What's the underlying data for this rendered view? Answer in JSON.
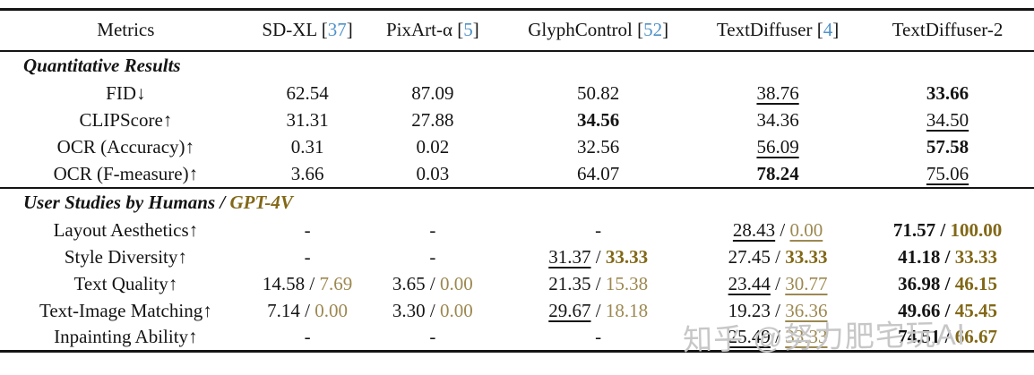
{
  "colors": {
    "cite_blue": "#4f91c9",
    "gold_plain": "#9c8850",
    "gold_bold": "#826817",
    "rule_black": "#141414",
    "watermark_gray": "#c7c7c7"
  },
  "table": {
    "columns": [
      {
        "label": "Metrics"
      },
      {
        "name": "SD-XL",
        "cite": "37"
      },
      {
        "name": "PixArt-α",
        "cite": "5"
      },
      {
        "name": "GlyphControl",
        "cite": "52"
      },
      {
        "name": "TextDiffuser",
        "cite": "4"
      },
      {
        "name": "TextDiffuser-2"
      }
    ],
    "sections": [
      {
        "title": "Quantitative Results",
        "title_suffix": "",
        "rows": [
          {
            "metric": "FID↓",
            "cells": [
              {
                "v": "62.54"
              },
              {
                "v": "87.09"
              },
              {
                "v": "50.82"
              },
              {
                "v": "38.76",
                "s": "u"
              },
              {
                "v": "33.66",
                "s": "b"
              }
            ]
          },
          {
            "metric": "CLIPScore↑",
            "cells": [
              {
                "v": "31.31"
              },
              {
                "v": "27.88"
              },
              {
                "v": "34.56",
                "s": "b"
              },
              {
                "v": "34.36"
              },
              {
                "v": "34.50",
                "s": "u"
              }
            ]
          },
          {
            "metric": "OCR (Accuracy)↑",
            "cells": [
              {
                "v": "0.31"
              },
              {
                "v": "0.02"
              },
              {
                "v": "32.56"
              },
              {
                "v": "56.09",
                "s": "u"
              },
              {
                "v": "57.58",
                "s": "b"
              }
            ]
          },
          {
            "metric": "OCR (F-measure)↑",
            "cells": [
              {
                "v": "3.66"
              },
              {
                "v": "0.03"
              },
              {
                "v": "64.07"
              },
              {
                "v": "78.24",
                "s": "b"
              },
              {
                "v": "75.06",
                "s": "u"
              }
            ]
          }
        ]
      },
      {
        "title": "User Studies by Humans / ",
        "title_suffix": "GPT-4V",
        "rows": [
          {
            "metric": "Layout Aesthetics↑",
            "cells": [
              {
                "v": "-"
              },
              {
                "v": "-"
              },
              {
                "v": "-"
              },
              {
                "v": "28.43",
                "s": "u",
                "v2": "0.00",
                "s2": "u"
              },
              {
                "v": "71.57",
                "s": "b",
                "v2": "100.00",
                "s2": "b"
              }
            ]
          },
          {
            "metric": "Style Diversity↑",
            "cells": [
              {
                "v": "-"
              },
              {
                "v": "-"
              },
              {
                "v": "31.37",
                "s": "u",
                "v2": "33.33",
                "s2": "b"
              },
              {
                "v": "27.45",
                "v2": "33.33",
                "s2": "b"
              },
              {
                "v": "41.18",
                "s": "b",
                "v2": "33.33",
                "s2": "b"
              }
            ]
          },
          {
            "metric": "Text Quality↑",
            "cells": [
              {
                "v": "14.58",
                "v2": "7.69"
              },
              {
                "v": "3.65",
                "v2": "0.00"
              },
              {
                "v": "21.35",
                "v2": "15.38"
              },
              {
                "v": "23.44",
                "s": "u",
                "v2": "30.77",
                "s2": "u"
              },
              {
                "v": "36.98",
                "s": "b",
                "v2": "46.15",
                "s2": "b"
              }
            ]
          },
          {
            "metric": "Text-Image Matching↑",
            "cells": [
              {
                "v": "7.14",
                "v2": "0.00"
              },
              {
                "v": "3.30",
                "v2": "0.00"
              },
              {
                "v": "29.67",
                "s": "u",
                "v2": "18.18"
              },
              {
                "v": "19.23",
                "v2": "36.36",
                "s2": "u"
              },
              {
                "v": "49.66",
                "s": "b",
                "v2": "45.45",
                "s2": "b"
              }
            ]
          },
          {
            "metric": "Inpainting Ability↑",
            "cells": [
              {
                "v": "-"
              },
              {
                "v": "-"
              },
              {
                "v": "-"
              },
              {
                "v": "25.49",
                "s": "u",
                "v2": "33.33",
                "s2": "u"
              },
              {
                "v": "74.51",
                "s": "b",
                "v2": "66.67",
                "s2": "b"
              }
            ]
          }
        ]
      }
    ]
  },
  "watermark": {
    "text": "知乎 @努力肥宅玩AI"
  }
}
